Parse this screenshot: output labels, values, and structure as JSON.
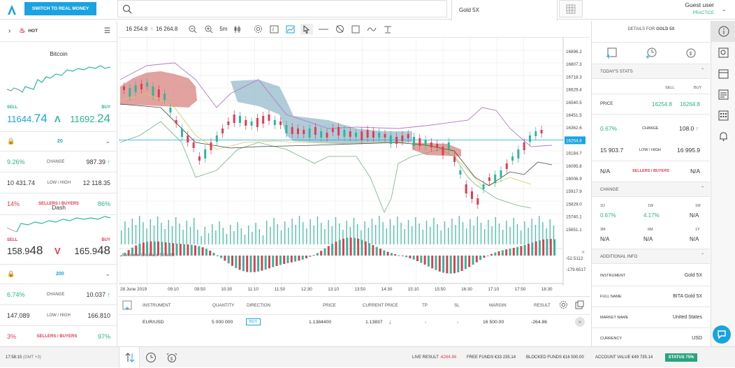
{
  "header": {
    "switch_label": "SWITCH TO REAL MONEY",
    "instrument_tab": "Gold 5X",
    "user_name": "Guest user",
    "user_mode": "PRACTICE"
  },
  "left": {
    "hot_label": "HOT",
    "cards": [
      {
        "title": "Bitcoin",
        "sell_label": "SELL",
        "buy_label": "BUY",
        "sell_main": "11644.",
        "sell_big": "74",
        "buy_main": "11692.",
        "buy_big": "24",
        "qty": "20",
        "change_pct": "9.26%",
        "change_label": "CHANGE",
        "change_val": "987.39",
        "low": "10 431.74",
        "lowhigh_label": "LOW / HIGH",
        "high": "12 118.35",
        "sellers_pct": "14%",
        "sb_label": "SELLERS / BUYERS",
        "buyers_pct": "86%"
      },
      {
        "title": "Dash",
        "sell_label": "SELL",
        "buy_label": "BUY",
        "sell_main": "158.9",
        "sell_big": "48",
        "buy_main": "165.9",
        "buy_big": "48",
        "qty": "200",
        "change_pct": "6.74%",
        "change_label": "CHANGE",
        "change_val": "10.037",
        "low": "147.089",
        "lowhigh_label": "LOW / HIGH",
        "high": "166.810",
        "sellers_pct": "3%",
        "sb_label": "SELLERS / BUYERS",
        "buyers_pct": "97%"
      }
    ]
  },
  "chart": {
    "sell_price": "16 254.8",
    "buy_price": "16 264.8",
    "timeframe": "5m",
    "y_ticks": [
      "16896.2",
      "16807.3",
      "16718.3",
      "16629.4",
      "16540.5",
      "16451.5",
      "16362.6",
      "16254.8",
      "16184.7",
      "16095.8",
      "16006.9",
      "15917.9",
      "15829.0",
      "15740.1",
      "15651.1"
    ],
    "osc_label": "Awesome Oscillator 55.5882",
    "osc_ticks": [
      "-52.5112",
      "-179.6517"
    ],
    "x_ticks": [
      "28 June 2019",
      "09:10",
      "09:50",
      "10:30",
      "11:10",
      "11:50",
      "12:30",
      "13:10",
      "13:50",
      "14:30",
      "15:10",
      "15:50",
      "16:30",
      "17:10",
      "17:50",
      "18:30"
    ],
    "accent": "#1aa3e0",
    "up_color": "#2bb89a",
    "down_color": "#e23b53"
  },
  "positions": {
    "headers": {
      "instrument": "INSTRUMENT",
      "quantity": "QUANTITY",
      "direction": "DIRECTION",
      "price": "PRICE",
      "current_price": "CURRENT PRICE",
      "tp": "TP",
      "sl": "SL",
      "margin": "MARGIN",
      "result": "RESULT"
    },
    "row": {
      "instrument": "EUR/USD",
      "quantity": "5 000 000",
      "direction": "BUY",
      "price": "1.1384400",
      "current_price": "1.13837",
      "tp": "-",
      "sl": "-",
      "margin": "16 500.00",
      "result": "-264.86"
    }
  },
  "details": {
    "title_prefix": "DETAILS FOR",
    "title_inst": "GOLD 5X",
    "today_stats": "TODAY'S STATS",
    "sell": "SELL",
    "buy": "BUY",
    "price_label": "PRICE",
    "price_sell": "16254.8",
    "price_buy": "16264.8",
    "change_pct": "0.67%",
    "change_label": "CHANGE",
    "change_val": "108.0",
    "low": "15 903.7",
    "lowhigh_label": "LOW / HIGH",
    "high": "16 995.9",
    "na1": "N/A",
    "sb_label": "SELLERS / BUYERS",
    "na2": "N/A",
    "change_section": "CHANGE",
    "periods": [
      {
        "label": "1D",
        "value": "0.67%"
      },
      {
        "label": "1W",
        "value": "4.17%"
      },
      {
        "label": "1M",
        "value": "N/A"
      },
      {
        "label": "3M",
        "value": "N/A"
      },
      {
        "label": "6M",
        "value": "N/A"
      },
      {
        "label": "1Y",
        "value": "N/A"
      }
    ],
    "additional": "ADDITIONAL INFO",
    "info": [
      {
        "label": "INSTRUMENT",
        "value": "Gold 5X"
      },
      {
        "label": "FULL NAME",
        "value": "BITA Gold 5X"
      },
      {
        "label": "MARKET NAME",
        "value": "United States"
      },
      {
        "label": "CURRENCY",
        "value": "USD"
      }
    ]
  },
  "footer": {
    "time": "17:58:15",
    "tz": "(GMT +3)",
    "live_label": "LIVE RESULT",
    "live_val": "-€264.86",
    "free_label": "FREE FUNDS",
    "free_val": "€33 235.14",
    "blocked_label": "BLOCKED FUNDS",
    "blocked_val": "€16 500.00",
    "account_label": "ACCOUNT VALUE",
    "account_val": "€49 735.14",
    "status": "STATUS 75%"
  }
}
